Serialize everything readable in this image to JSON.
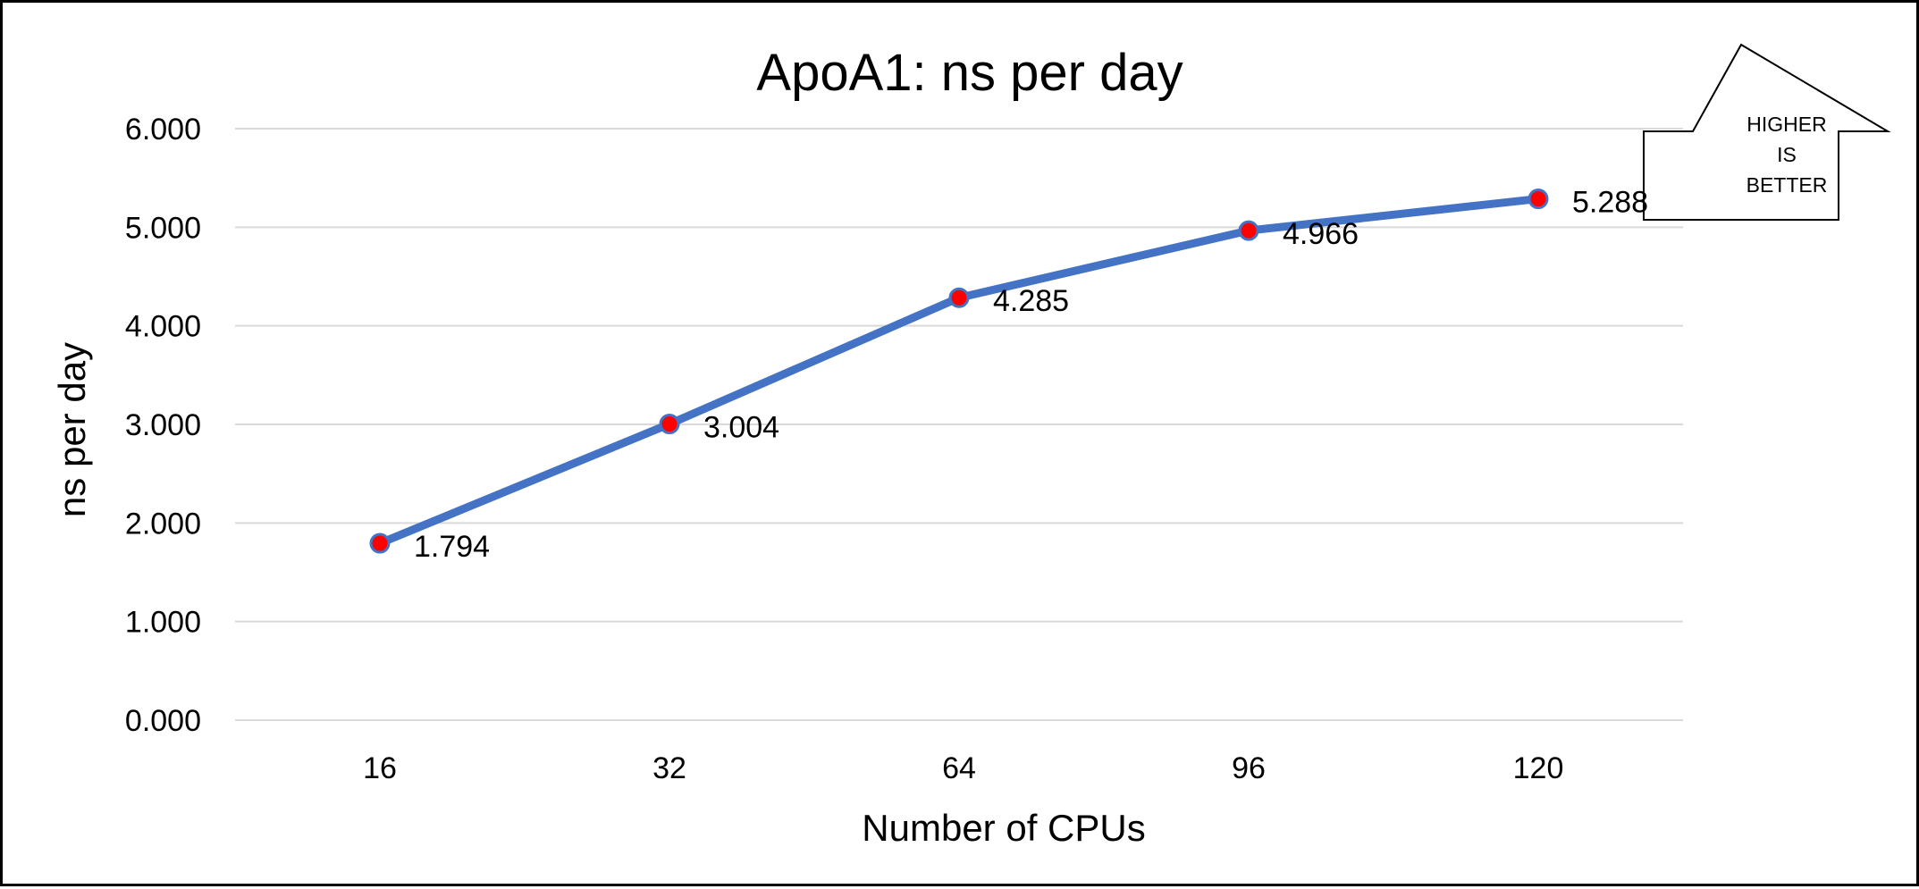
{
  "chart_data": {
    "type": "line",
    "title": "ApoA1: ns per day",
    "xlabel": "Number of CPUs",
    "ylabel": "ns per day",
    "categories": [
      "16",
      "32",
      "64",
      "96",
      "120"
    ],
    "series": [
      {
        "name": "ns per day",
        "values": [
          1.794,
          3.004,
          4.285,
          4.966,
          5.288
        ]
      }
    ],
    "data_labels": [
      "1.794",
      "3.004",
      "4.285",
      "4.966",
      "5.288"
    ],
    "ylim": [
      0,
      6
    ],
    "yticks": [
      "0.000",
      "1.000",
      "2.000",
      "3.000",
      "4.000",
      "5.000",
      "6.000"
    ],
    "grid": true,
    "legend": "none",
    "colors": {
      "line": "#4472c4",
      "marker": "#ff0000",
      "marker_edge": "#4472c4",
      "grid": "#d9d9d9"
    }
  },
  "badge": {
    "lines": [
      "HIGHER",
      "IS",
      "BETTER"
    ],
    "icon": "up-arrow-icon"
  }
}
